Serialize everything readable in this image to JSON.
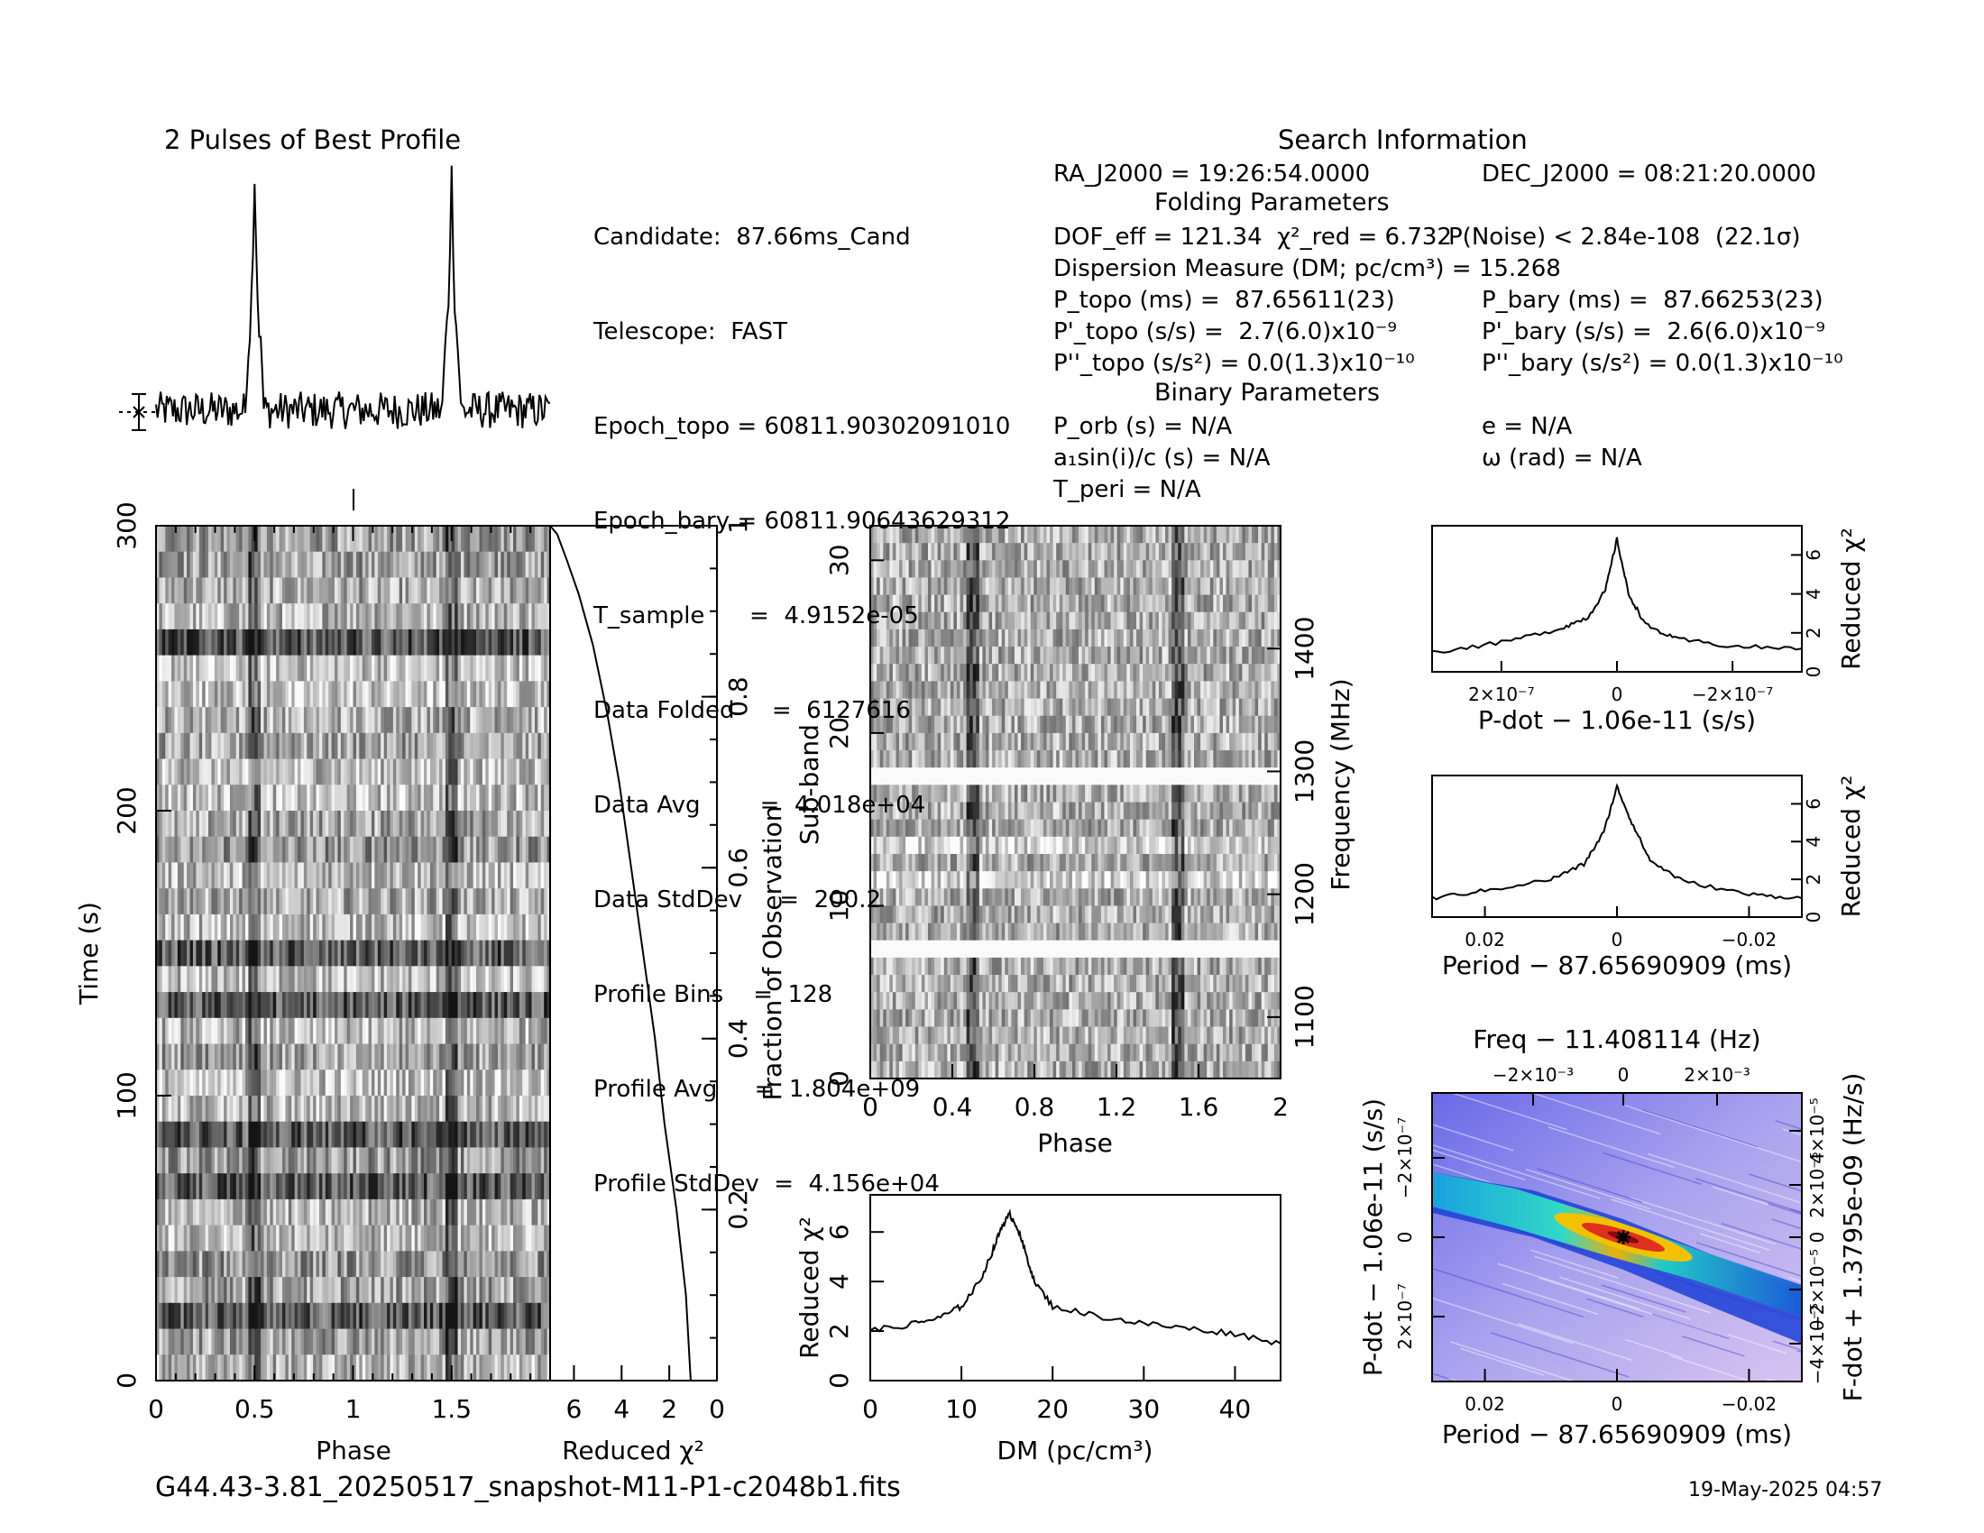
{
  "header": {
    "profile_title": "2 Pulses of Best Profile",
    "search_title": "Search Information",
    "folding_title": "Folding Parameters",
    "binary_title": "Binary Parameters"
  },
  "search_info": {
    "candidate": "Candidate:  87.66ms_Cand",
    "telescope": "Telescope:  FAST",
    "epoch_topo": "Epoch_topo = 60811.90302091010",
    "epoch_bary": "Epoch_bary = 60811.90643629312",
    "t_sample": "T_sample      =  4.9152e-05",
    "data_folded": "Data Folded     =  6127616",
    "data_avg": "Data Avg        =  4.018e+04",
    "data_stddev": "Data StdDev     =  200.2",
    "profile_bins": "Profile Bins    =  128",
    "profile_avg": "Profile Avg     =  1.804e+09",
    "profile_stddev": "Profile StdDev  =  4.156e+04"
  },
  "folding_info": {
    "ra": "RA_J2000 = 19:26:54.0000",
    "dec": "DEC_J2000 = 08:21:20.0000",
    "dof": "DOF_eff = 121.34  χ²_red = 6.732",
    "p_noise": "P(Noise) < 2.84e-108  (22.1σ)",
    "dm": "Dispersion Measure (DM; pc/cm³) = 15.268",
    "p_topo": "P_topo (ms) =  87.65611(23)",
    "p_bary": "P_bary (ms) =  87.66253(23)",
    "pd_topo": "P'_topo (s/s) =  2.7(6.0)x10⁻⁹",
    "pd_bary": "P'_bary (s/s) =  2.6(6.0)x10⁻⁹",
    "pdd_topo": "P''_topo (s/s²) = 0.0(1.3)x10⁻¹⁰",
    "pdd_bary": "P''_bary (s/s²) = 0.0(1.3)x10⁻¹⁰",
    "p_orb": "P_orb (s) = N/A",
    "ecc": "e = N/A",
    "a1sini": "a₁sin(i)/c (s) = N/A",
    "omega": "ω (rad) = N/A",
    "t_peri": "T_peri = N/A"
  },
  "footer": {
    "filename": "G44.43-3.81_20250517_snapshot-M11-P1-c2048b1.fits",
    "date": "19-May-2025 04:57"
  },
  "chart_data": [
    {
      "type": "line",
      "id": "best-profile",
      "title": "2 Pulses of Best Profile",
      "x": [
        0,
        0.45,
        0.49,
        0.5,
        0.51,
        0.55,
        1.0,
        1.45,
        1.49,
        1.5,
        1.51,
        1.55,
        2.0
      ],
      "y": [
        0,
        0,
        0.7,
        1.0,
        0.7,
        0,
        0,
        0,
        0.7,
        1.0,
        0.7,
        0,
        0
      ],
      "xlim": [
        0,
        2
      ]
    },
    {
      "type": "heatmap",
      "id": "time-phase",
      "xlabel": "Phase",
      "ylabel": "Time (s)",
      "xlim": [
        0,
        2
      ],
      "ylim": [
        0,
        300
      ],
      "xticks": [
        "0",
        "0.5",
        "1",
        "1.5"
      ],
      "yticks": [
        "0",
        "100",
        "200",
        "300"
      ],
      "pulse_phase": [
        0.5,
        1.5
      ]
    },
    {
      "type": "line",
      "id": "time-chi2",
      "xlabel": "Reduced χ²",
      "ylabel": "Fraction of Observation",
      "xlim": [
        7,
        0
      ],
      "ylim": [
        0,
        1
      ],
      "xticks": [
        "6",
        "4",
        "2",
        "0"
      ],
      "yticks": [
        "0.2",
        "0.4",
        "0.6",
        "0.8",
        "1"
      ],
      "x": [
        1.1,
        1.3,
        1.7,
        2.2,
        2.6,
        3.1,
        3.6,
        4.1,
        4.6,
        5.2,
        5.8,
        6.3,
        6.7,
        7.0
      ],
      "y": [
        0,
        0.1,
        0.2,
        0.3,
        0.4,
        0.5,
        0.6,
        0.7,
        0.78,
        0.86,
        0.92,
        0.96,
        0.99,
        1.0
      ]
    },
    {
      "type": "heatmap",
      "id": "subband-phase",
      "xlabel": "Phase",
      "ylabel": "Sub-band",
      "ylabel_right": "Frequency (MHz)",
      "xlim": [
        0,
        2
      ],
      "ylim": [
        0,
        32
      ],
      "xticks": [
        "0",
        "0.4",
        "0.8",
        "1.2",
        "1.6",
        "2"
      ],
      "yticks": [
        "0",
        "10",
        "20",
        "30"
      ],
      "yticks_right": [
        "1100",
        "1200",
        "1300",
        "1400"
      ],
      "masked_subbands": [
        7,
        17
      ]
    },
    {
      "type": "line",
      "id": "dm-chi2",
      "xlabel": "DM (pc/cm³)",
      "ylabel": "Reduced χ²",
      "xlim": [
        0,
        45
      ],
      "ylim": [
        0,
        7.5
      ],
      "xticks": [
        "0",
        "10",
        "20",
        "30",
        "40"
      ],
      "yticks": [
        "0",
        "2",
        "4",
        "6"
      ],
      "x": [
        0,
        5,
        8,
        10,
        12,
        13.5,
        14.5,
        15.3,
        16,
        17,
        18,
        20,
        25,
        30,
        35,
        40,
        45
      ],
      "y": [
        2.0,
        2.3,
        2.6,
        3.0,
        4.0,
        5.3,
        6.3,
        6.7,
        6.3,
        5.2,
        4.0,
        3.0,
        2.6,
        2.3,
        2.1,
        1.9,
        1.5
      ]
    },
    {
      "type": "line",
      "id": "pdot-chi2",
      "xlabel": "P-dot − 1.06e-11 (s/s)",
      "ylabel": "Reduced χ²",
      "xticks": [
        "2×10⁻⁷",
        "0",
        "−2×10⁻⁷"
      ],
      "yticks": [
        "0",
        "2",
        "4",
        "6"
      ],
      "xlim": [
        3.2e-07,
        -3.2e-07
      ],
      "ylim": [
        0,
        7.5
      ],
      "x": [
        3.2e-07,
        2e-07,
        1e-07,
        5e-08,
        2e-08,
        0,
        -2e-08,
        -5e-08,
        -1e-07,
        -2e-07,
        -3.2e-07
      ],
      "y": [
        1.0,
        1.5,
        2.2,
        2.8,
        4.2,
        6.8,
        4.0,
        2.4,
        1.7,
        1.3,
        1.2
      ]
    },
    {
      "type": "line",
      "id": "period-chi2",
      "xlabel": "Period − 87.65690909 (ms)",
      "ylabel": "Reduced χ²",
      "xticks": [
        "0.02",
        "0",
        "−0.02"
      ],
      "yticks": [
        "0",
        "2",
        "4",
        "6"
      ],
      "xlim": [
        0.028,
        -0.028
      ],
      "ylim": [
        0,
        7.5
      ],
      "x": [
        0.028,
        0.02,
        0.01,
        0.005,
        0.002,
        0,
        -0.002,
        -0.005,
        -0.01,
        -0.02,
        -0.028
      ],
      "y": [
        1.0,
        1.4,
        2.0,
        2.8,
        4.5,
        6.9,
        5.2,
        3.0,
        1.9,
        1.2,
        1.0
      ]
    },
    {
      "type": "heatmap",
      "id": "period-pdot",
      "title": "Freq − 11.408114 (Hz)",
      "xlabel": "Period − 87.65690909 (ms)",
      "ylabel": "P-dot − 1.06e-11 (s/s)",
      "ylabel_right": "F-dot + 1.3795e-09 (Hz/s)",
      "xticks": [
        "0.02",
        "0",
        "−0.02"
      ],
      "xticks_top": [
        "−2×10⁻³",
        "0",
        "2×10⁻³"
      ],
      "yticks": [
        "2×10⁻⁷",
        "0",
        "−2×10⁻⁷"
      ],
      "yticks_right": [
        "−4×10⁻⁵",
        "−2×10⁻⁵",
        "0",
        "2×10⁻⁵",
        "4×10⁻⁵"
      ]
    }
  ]
}
